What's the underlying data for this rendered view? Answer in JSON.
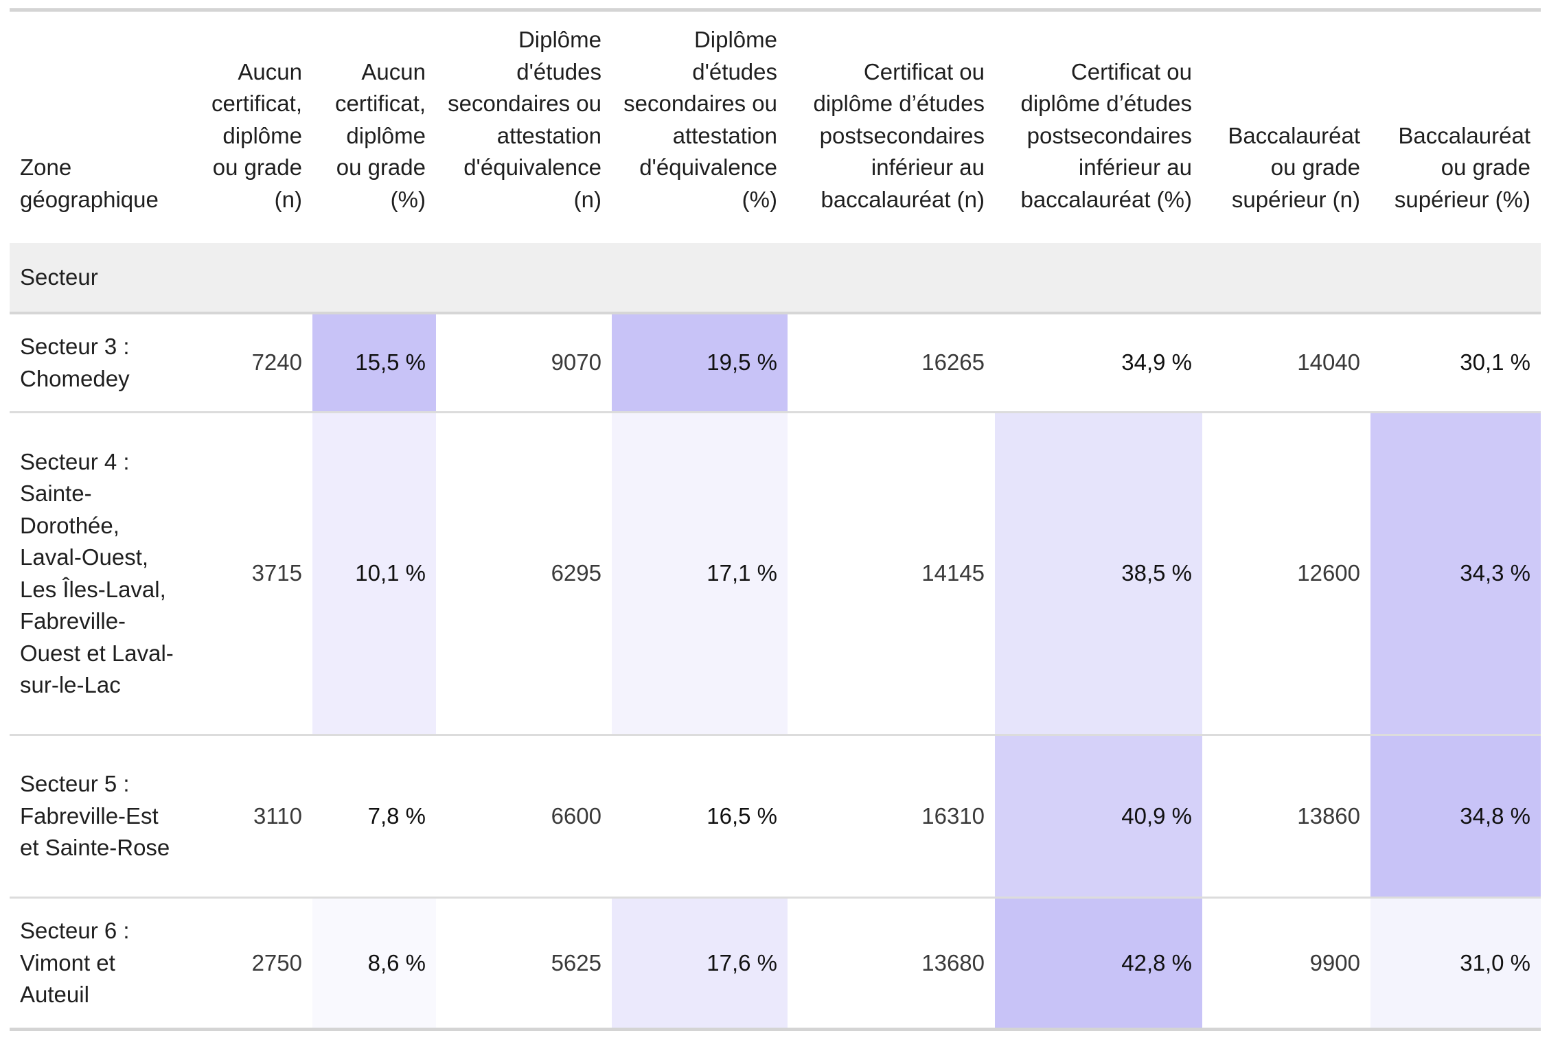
{
  "table": {
    "columns": [
      "Zone géographique",
      "Aucun certificat, diplôme ou grade (n)",
      "Aucun certificat, diplôme ou grade (%)",
      "Diplôme d'études secondaires ou attestation d'équivalence (n)",
      "Diplôme d'études secondaires ou attestation d'équivalence (%)",
      "Certificat ou diplôme d’études postsecondaires inférieur au baccalauréat (n)",
      "Certificat ou diplôme d’études postsecondaires inférieur au baccalauréat (%)",
      "Baccalauréat ou grade supérieur (n)",
      "Baccalauréat ou grade supérieur (%)"
    ],
    "section_label": "Secteur",
    "rows": [
      {
        "zone": "Secteur 3 : Chomedey",
        "cells": [
          "7240",
          "15,5 %",
          "9070",
          "19,5 %",
          "16265",
          "34,9 %",
          "14040",
          "30,1 %"
        ]
      },
      {
        "zone": "Secteur 4 : Sainte-Dorothée, Laval-Ouest, Les Îles-Laval, Fabreville-Ouest et Laval-sur-le-Lac",
        "cells": [
          "3715",
          "10,1 %",
          "6295",
          "17,1 %",
          "14145",
          "38,5 %",
          "12600",
          "34,3 %"
        ]
      },
      {
        "zone": "Secteur 5 : Fabreville-Est et Sainte-Rose",
        "cells": [
          "3110",
          "7,8 %",
          "6600",
          "16,5 %",
          "16310",
          "40,9 %",
          "13860",
          "34,8 %"
        ]
      },
      {
        "zone": "Secteur 6 : Vimont et Auteuil",
        "cells": [
          "2750",
          "8,6 %",
          "5625",
          "17,6 %",
          "13680",
          "42,8 %",
          "9900",
          "31,0 %"
        ]
      }
    ],
    "heat_color": "#c8c3f7"
  },
  "chart_data": {
    "type": "table",
    "columns": [
      "Zone géographique",
      "Aucun certificat, diplôme ou grade (n)",
      "Aucun certificat, diplôme ou grade (%)",
      "Diplôme d'études secondaires ou attestation d'équivalence (n)",
      "Diplôme d'études secondaires ou attestation d'équivalence (%)",
      "Certificat ou diplôme d’études postsecondaires inférieur au baccalauréat (n)",
      "Certificat ou diplôme d’études postsecondaires inférieur au baccalauréat (%)",
      "Baccalauréat ou grade supérieur (n)",
      "Baccalauréat ou grade supérieur (%)"
    ],
    "rows": [
      [
        "Secteur 3 : Chomedey",
        7240,
        15.5,
        9070,
        19.5,
        16265,
        34.9,
        14040,
        30.1
      ],
      [
        "Secteur 4 : Sainte-Dorothée, Laval-Ouest, Les Îles-Laval, Fabreville-Ouest et Laval-sur-le-Lac",
        3715,
        10.1,
        6295,
        17.1,
        14145,
        38.5,
        12600,
        34.3
      ],
      [
        "Secteur 5 : Fabreville-Est et Sainte-Rose",
        3110,
        7.8,
        6600,
        16.5,
        16310,
        40.9,
        13860,
        34.8
      ],
      [
        "Secteur 6 : Vimont et Auteuil",
        2750,
        8.6,
        5625,
        17.6,
        13680,
        42.8,
        9900,
        31.0
      ]
    ]
  }
}
